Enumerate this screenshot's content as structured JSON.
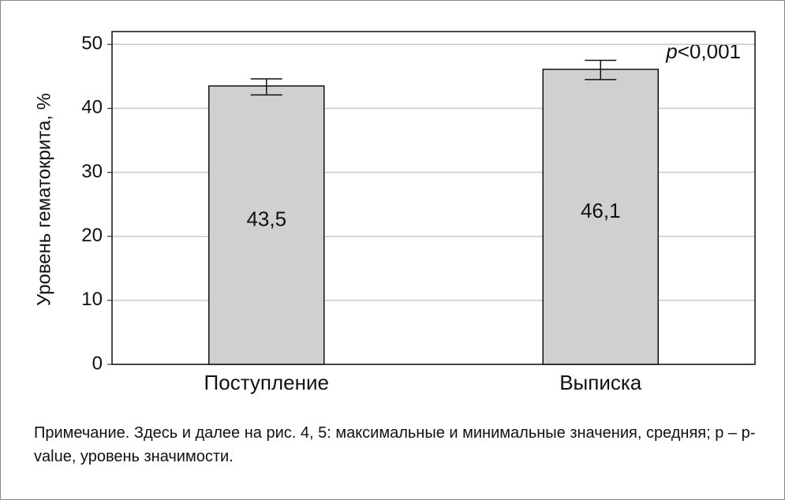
{
  "chart_data": {
    "type": "bar",
    "y_label": "Уровень гематокрита, %",
    "categories": [
      "Поступление",
      "Выписка"
    ],
    "values": [
      43.5,
      46.1
    ],
    "value_labels": [
      "43,5",
      "46,1"
    ],
    "max": [
      44.6,
      47.5
    ],
    "min": [
      42.1,
      44.5
    ],
    "color": "#d0d0d0",
    "ylim": [
      0,
      52
    ],
    "yticks": [
      0,
      10,
      20,
      30,
      40,
      50
    ],
    "grid": true,
    "annotation_symbol": "p",
    "annotation": "<0,001"
  },
  "note": "Примечание. Здесь и далее на рис. 4, 5: максимальные и минимальные значения, средняя; p – p-value, уровень значимости."
}
